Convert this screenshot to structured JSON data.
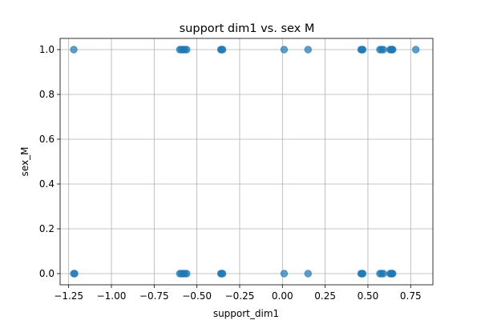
{
  "chart_data": {
    "type": "scatter",
    "title": "support dim1 vs. sex M",
    "xlabel": "support_dim1",
    "ylabel": "sex_M",
    "xlim": [
      -1.3,
      0.88
    ],
    "ylim": [
      -0.05,
      1.05
    ],
    "grid": true,
    "x_ticks": [
      -1.25,
      -1.0,
      -0.75,
      -0.5,
      -0.25,
      0.0,
      0.25,
      0.5,
      0.75
    ],
    "x_tick_labels": [
      "−1.25",
      "−1.00",
      "−0.75",
      "−0.50",
      "−0.25",
      "0.00",
      "0.25",
      "0.50",
      "0.75"
    ],
    "y_ticks": [
      0.0,
      0.2,
      0.4,
      0.6,
      0.8,
      1.0
    ],
    "y_tick_labels": [
      "0.0",
      "0.2",
      "0.4",
      "0.6",
      "0.8",
      "1.0"
    ],
    "color": "#1f77b4",
    "series": [
      {
        "points": [
          [
            -1.22,
            1
          ],
          [
            -0.6,
            1
          ],
          [
            -0.59,
            1
          ],
          [
            -0.58,
            1
          ],
          [
            -0.57,
            1
          ],
          [
            -0.56,
            1
          ],
          [
            -0.36,
            1
          ],
          [
            -0.355,
            1
          ],
          [
            -0.35,
            1
          ],
          [
            0.01,
            1
          ],
          [
            0.15,
            1
          ],
          [
            0.46,
            1
          ],
          [
            0.465,
            1
          ],
          [
            0.47,
            1
          ],
          [
            0.57,
            1
          ],
          [
            0.58,
            1
          ],
          [
            0.59,
            1
          ],
          [
            0.63,
            1
          ],
          [
            0.635,
            1
          ],
          [
            0.64,
            1
          ],
          [
            0.645,
            1
          ],
          [
            0.78,
            1
          ],
          [
            -1.22,
            0
          ],
          [
            -1.215,
            0
          ],
          [
            -0.6,
            0
          ],
          [
            -0.59,
            0
          ],
          [
            -0.58,
            0
          ],
          [
            -0.57,
            0
          ],
          [
            -0.56,
            0
          ],
          [
            -0.36,
            0
          ],
          [
            -0.355,
            0
          ],
          [
            -0.35,
            0
          ],
          [
            0.01,
            0
          ],
          [
            0.15,
            0
          ],
          [
            0.46,
            0
          ],
          [
            0.465,
            0
          ],
          [
            0.47,
            0
          ],
          [
            0.57,
            0
          ],
          [
            0.58,
            0
          ],
          [
            0.59,
            0
          ],
          [
            0.63,
            0
          ],
          [
            0.635,
            0
          ],
          [
            0.64,
            0
          ],
          [
            0.645,
            0
          ]
        ]
      }
    ]
  }
}
